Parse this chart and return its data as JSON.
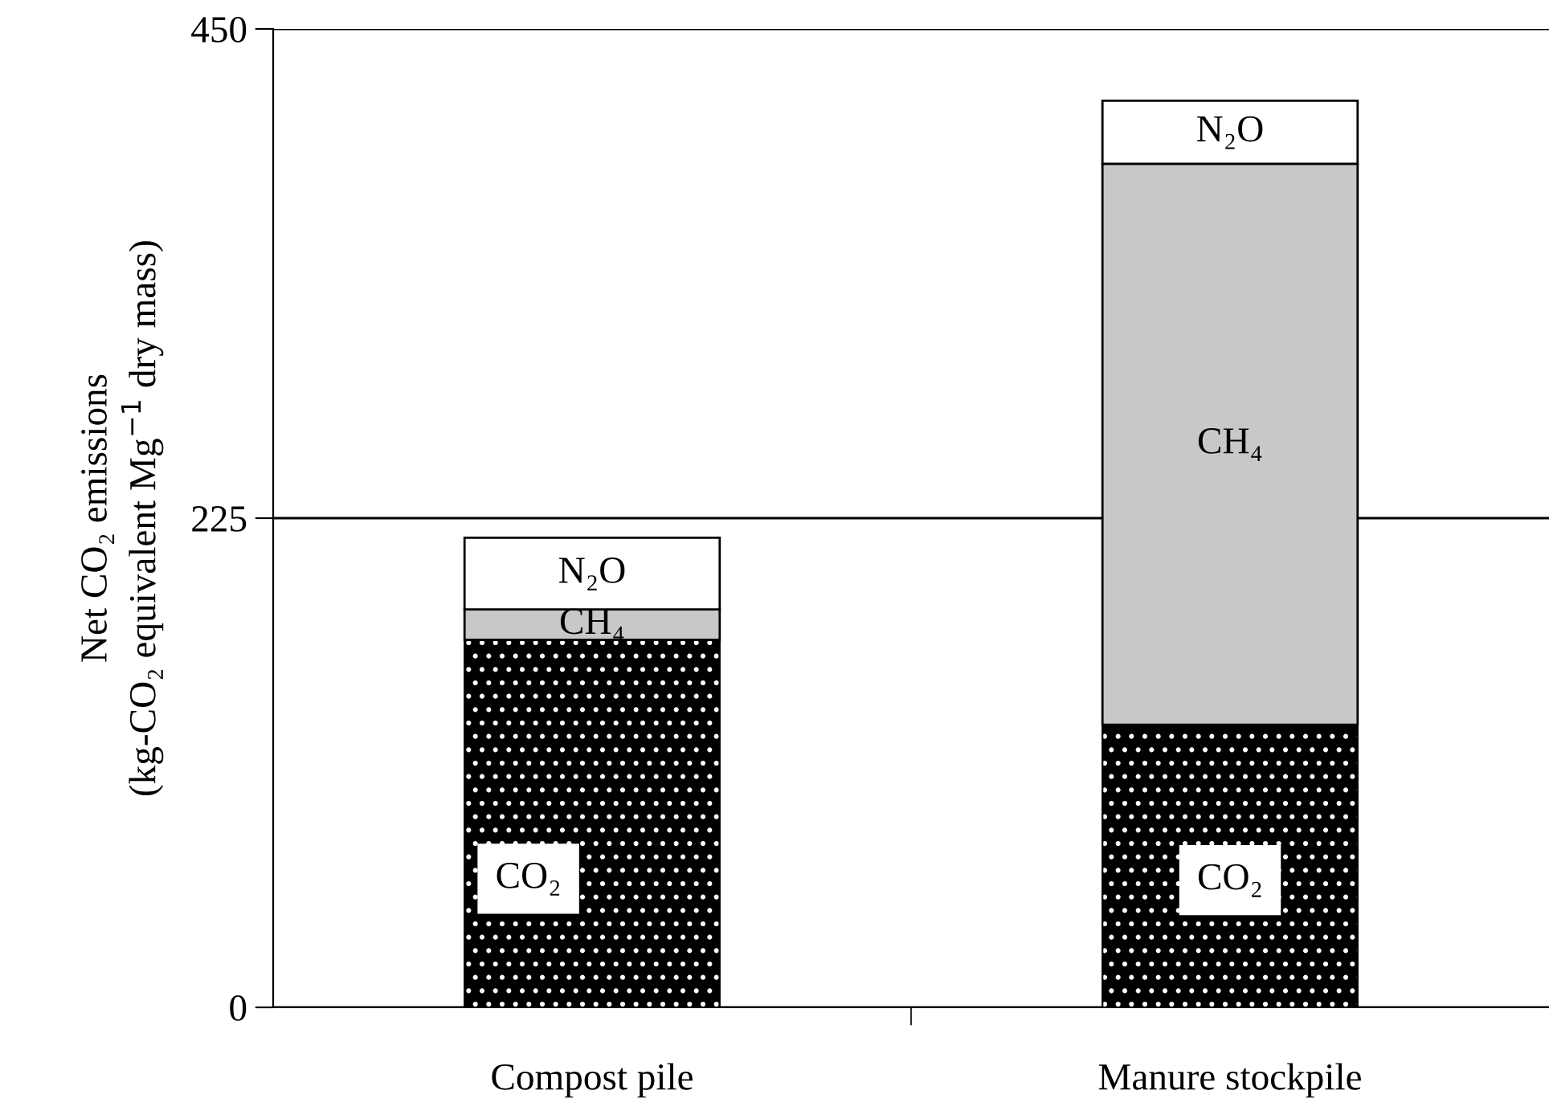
{
  "chart_data": {
    "type": "bar",
    "stacked": true,
    "ylabel": "Net CO₂ emissions\n(kg-CO₂ equivalent Mg$^{−1}$ dry mass)",
    "categories": [
      "Compost pile",
      "Manure stockpile"
    ],
    "series": [
      {
        "name": "CO₂",
        "color": "#000000",
        "values": [
          169,
          130
        ]
      },
      {
        "name": "CH₄",
        "color": "#c8c8c8",
        "values": [
          14,
          258
        ]
      },
      {
        "name": "N₂O",
        "color": "#ffffff",
        "values": [
          33,
          29
        ]
      }
    ],
    "ylim": [
      0,
      450
    ],
    "yticks": [
      0,
      225,
      450
    ],
    "grid": "y",
    "legend": false
  }
}
